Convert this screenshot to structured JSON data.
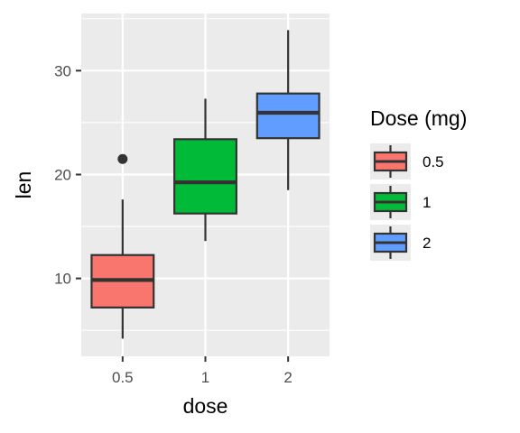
{
  "chart_data": {
    "type": "boxplot",
    "xlabel": "dose",
    "ylabel": "len",
    "categories": [
      "0.5",
      "1",
      "2"
    ],
    "ylim": [
      2.5,
      35.5
    ],
    "y_ticks": [
      10,
      20,
      30
    ],
    "y_tick_labels": [
      "10",
      "20",
      "30"
    ],
    "grid": true,
    "legend": {
      "title": "Dose (mg)",
      "position": "right",
      "entries": [
        "0.5",
        "1",
        "2"
      ]
    },
    "colors": [
      "#F8766D",
      "#00BA38",
      "#619CFF"
    ],
    "series": [
      {
        "name": "0.5",
        "min": 4.2,
        "q1": 7.2,
        "median": 9.85,
        "q3": 12.25,
        "max": 17.6,
        "outliers": [
          21.5
        ]
      },
      {
        "name": "1",
        "min": 13.6,
        "q1": 16.25,
        "median": 19.25,
        "q3": 23.4,
        "max": 27.3,
        "outliers": []
      },
      {
        "name": "2",
        "min": 18.5,
        "q1": 23.5,
        "median": 25.95,
        "q3": 27.8,
        "max": 33.9,
        "outliers": []
      }
    ]
  }
}
